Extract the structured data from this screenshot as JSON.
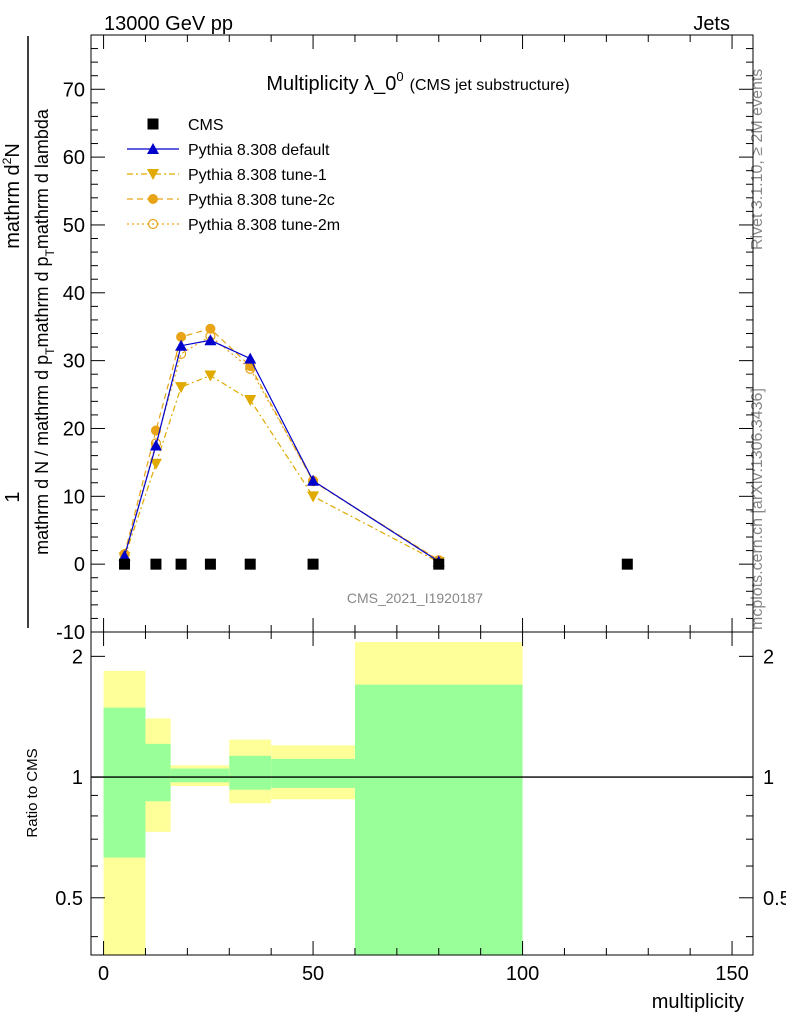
{
  "header": {
    "left": "13000 GeV pp",
    "right": "Jets"
  },
  "side_text": {
    "rivet": "Rivet 3.1.10, ≥ 2M events",
    "mcplots": "mcplots.cern.ch [arXiv:1306.3436]"
  },
  "chart_data": [
    {
      "type": "scatter",
      "title_main": "Multiplicity λ_0",
      "title_sup": "0",
      "title_sub": "(CMS jet substructure)",
      "ylabel_top": "1",
      "ylabel_numerator": "mathrm d",
      "ylabel_numerator_sup": "2",
      "ylabel_numerator_rest": "N",
      "ylabel_denominator": "mathrm d N / mathrm d p",
      "ylabel_denominator_sub": "T",
      "ylabel_denominator_rest": "mathrm d p",
      "ylabel_denominator_rest_sub": "T",
      "ylabel_denominator_end": "mathrm d lambda",
      "analysis_id": "CMS_2021_I1920187",
      "xlim": [
        -3,
        155
      ],
      "ylim": [
        -10,
        78
      ],
      "yticks": [
        -10,
        0,
        10,
        20,
        30,
        40,
        50,
        60,
        70
      ],
      "series": [
        {
          "name": "CMS",
          "color": "#000000",
          "marker": "square",
          "x": [
            5,
            12.5,
            18.5,
            25.5,
            35,
            50,
            80,
            125
          ],
          "y": [
            0,
            0,
            0,
            0,
            0,
            0,
            0,
            0
          ]
        },
        {
          "name": "Pythia 8.308 default",
          "color": "#0000cc",
          "marker": "triangle-up",
          "line": "solid",
          "x": [
            5,
            12.5,
            18.5,
            25.5,
            35,
            50,
            80
          ],
          "y": [
            1.2,
            17.5,
            32.2,
            33.0,
            30.3,
            12.3,
            0.4
          ]
        },
        {
          "name": "Pythia 8.308 tune-1",
          "color": "#e0aa00",
          "marker": "triangle-down",
          "line": "dashdot",
          "x": [
            5,
            12.5,
            18.5,
            25.5,
            35,
            50,
            80
          ],
          "y": [
            1.0,
            14.8,
            26.1,
            27.8,
            24.2,
            10.0,
            0.3
          ]
        },
        {
          "name": "Pythia 8.308 tune-2c",
          "color": "#e8a317",
          "marker": "circle",
          "line": "dashed",
          "x": [
            5,
            12.5,
            18.5,
            25.5,
            35,
            50,
            80
          ],
          "y": [
            1.5,
            19.7,
            33.5,
            34.7,
            29.2,
            12.2,
            0.6
          ]
        },
        {
          "name": "Pythia 8.308 tune-2m",
          "color": "#e8a317",
          "marker": "circle-open",
          "line": "dotted",
          "x": [
            5,
            12.5,
            18.5,
            25.5,
            35,
            50,
            80
          ],
          "y": [
            1.4,
            17.8,
            31.0,
            33.6,
            28.8,
            12.3,
            0.5
          ]
        }
      ]
    },
    {
      "type": "area",
      "ylabel": "Ratio to CMS",
      "xlabel": "multiplicity",
      "xlim": [
        -3,
        155
      ],
      "ylim": [
        0.36,
        2.3
      ],
      "yticks": [
        0.5,
        1,
        2
      ],
      "xticks": [
        0,
        50,
        100,
        150
      ],
      "reference": 1,
      "bins": [
        {
          "x0": 0,
          "x1": 10,
          "yellow": [
            0.35,
            1.84
          ],
          "green": [
            0.63,
            1.49
          ]
        },
        {
          "x0": 10,
          "x1": 16,
          "yellow": [
            0.73,
            1.4
          ],
          "green": [
            0.87,
            1.21
          ]
        },
        {
          "x0": 16,
          "x1": 30,
          "yellow": [
            0.95,
            1.07
          ],
          "green": [
            0.97,
            1.05
          ]
        },
        {
          "x0": 30,
          "x1": 40,
          "yellow": [
            0.86,
            1.24
          ],
          "green": [
            0.93,
            1.13
          ]
        },
        {
          "x0": 40,
          "x1": 60,
          "yellow": [
            0.88,
            1.2
          ],
          "green": [
            0.94,
            1.11
          ]
        },
        {
          "x0": 60,
          "x1": 100,
          "yellow": [
            0.36,
            2.17
          ],
          "green": [
            0.36,
            1.7
          ]
        }
      ],
      "band_colors": {
        "yellow": "#ffff99",
        "green": "#99ff99"
      }
    }
  ]
}
